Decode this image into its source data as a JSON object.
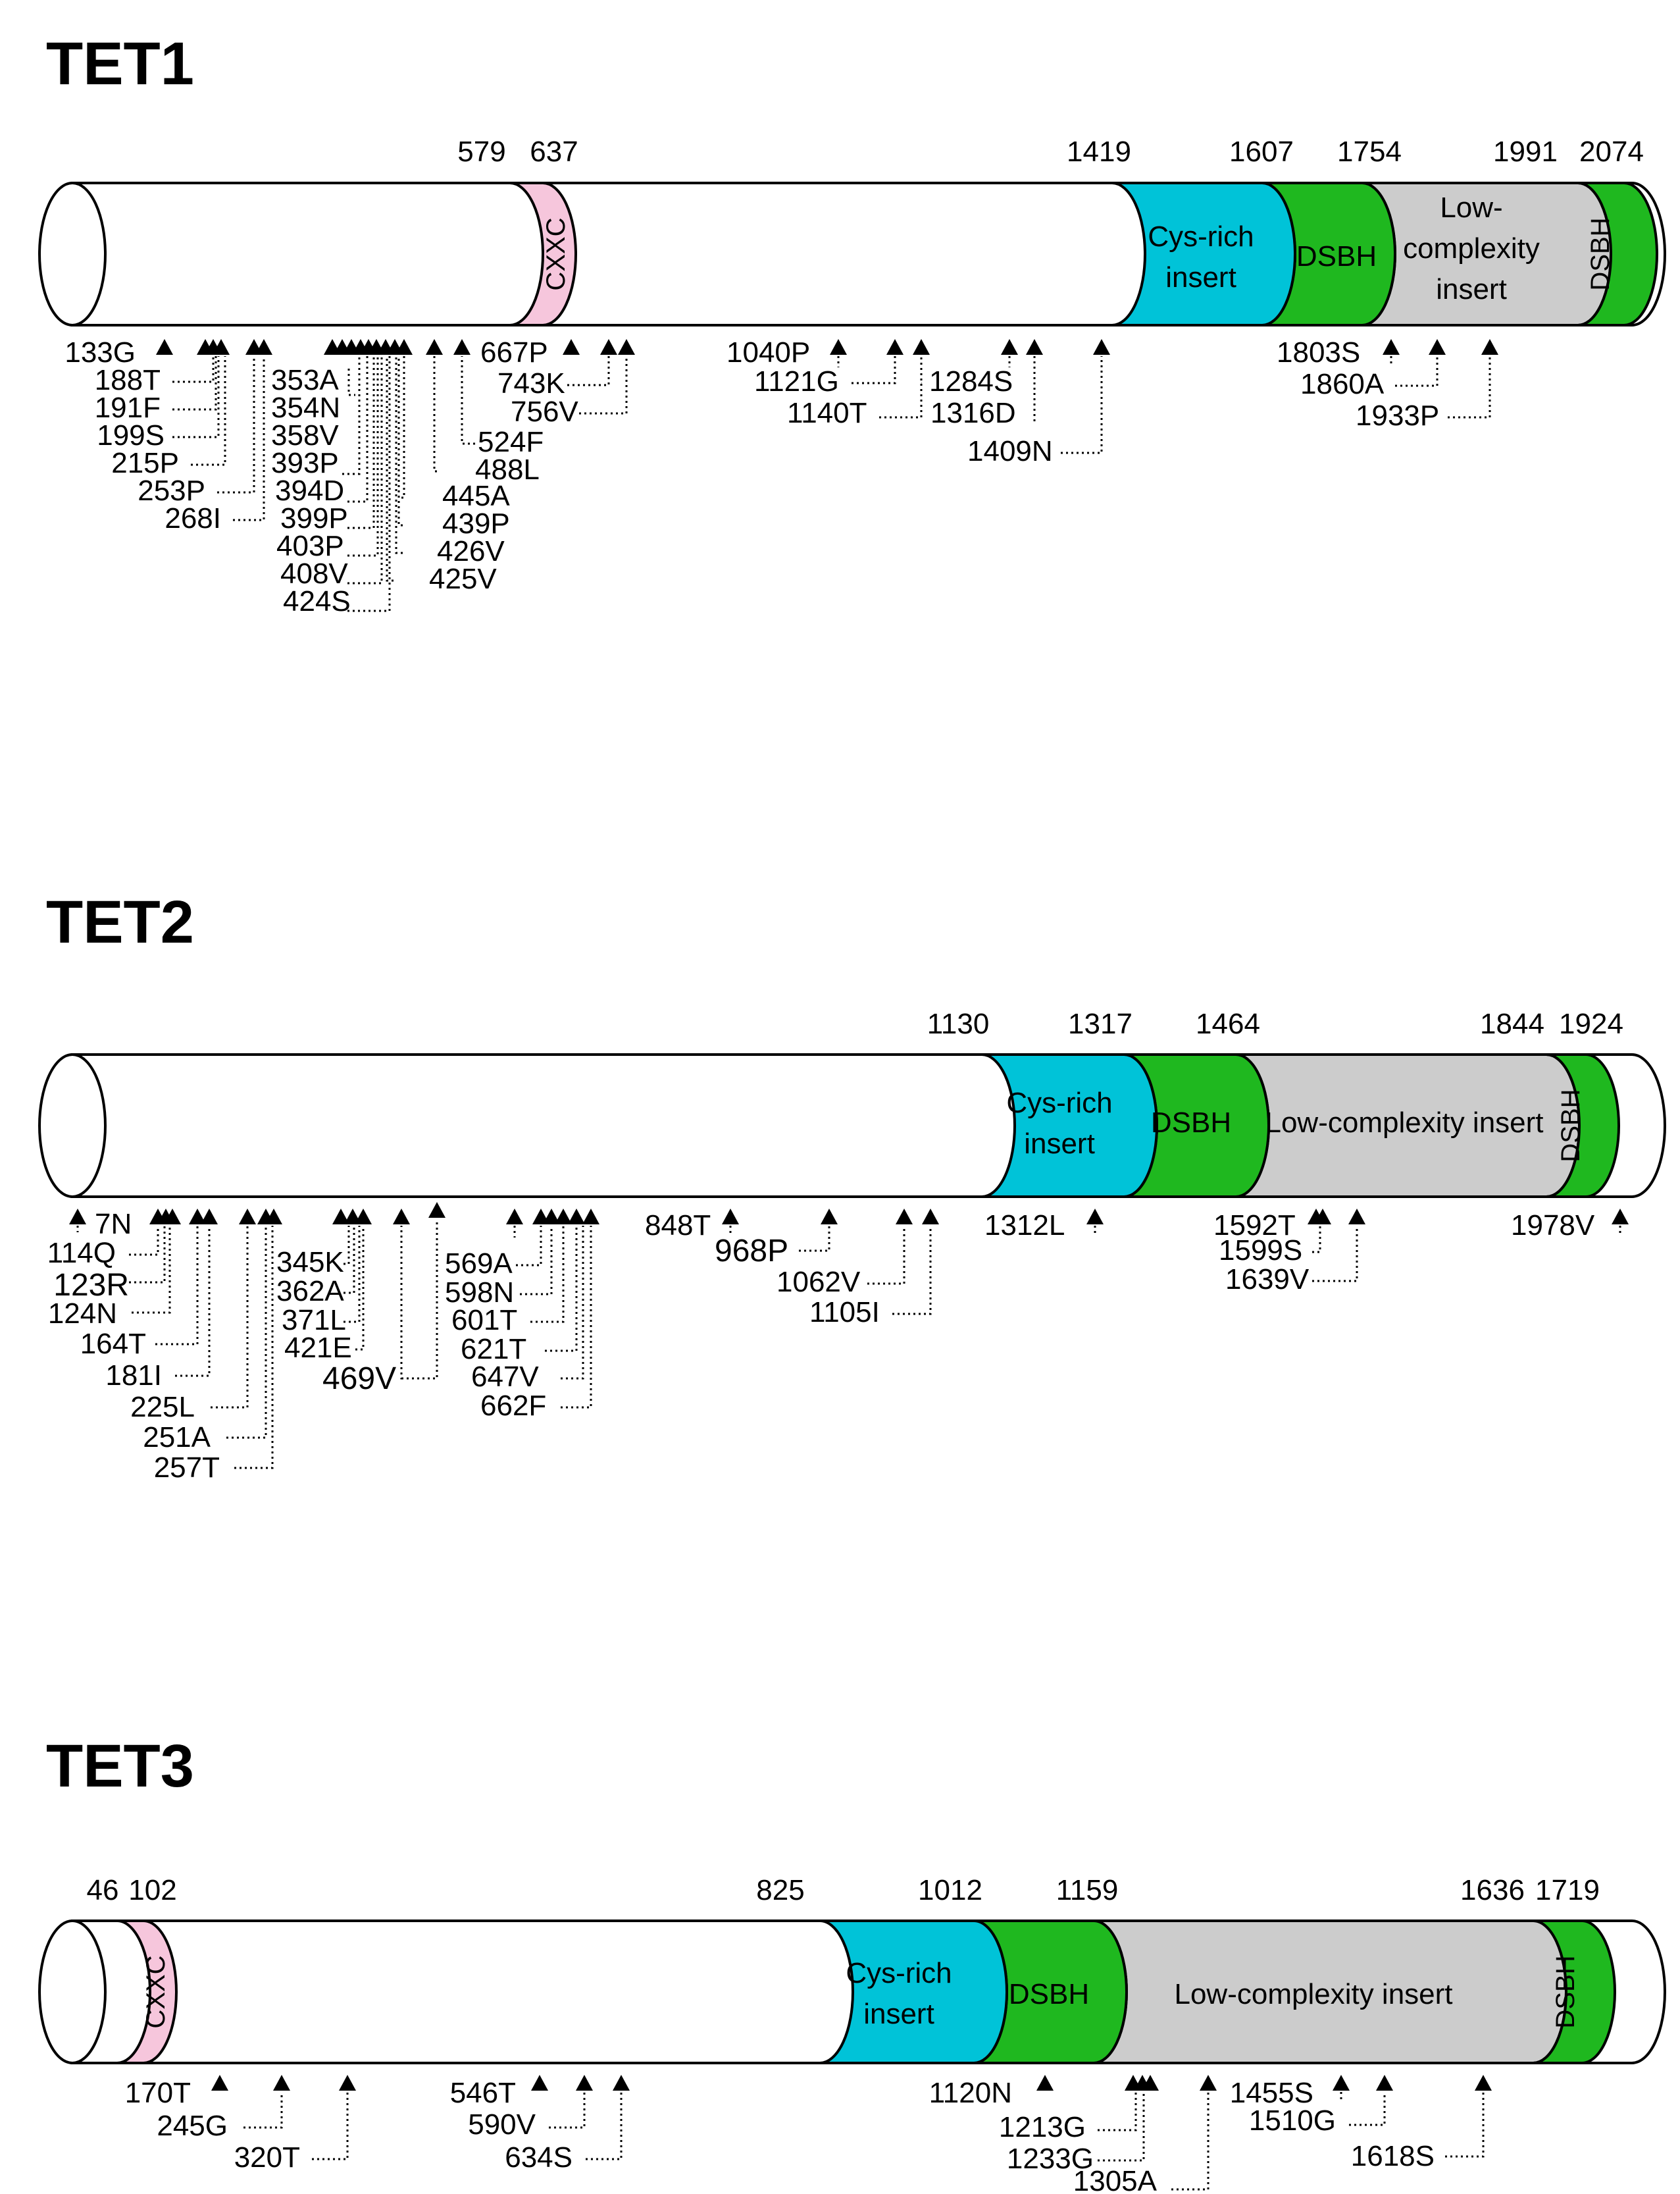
{
  "colors": {
    "cxxc": "#f6c6dc",
    "cys_rich": "#00c3d8",
    "dsbh": "#1fb81f",
    "low_complexity": "#cccccc",
    "body": "#ffffff",
    "highlight_label": "#2a2aa6",
    "label": "#000000"
  },
  "proteins": [
    {
      "title": "TET1",
      "boundaries": [
        "579",
        "637",
        "1419",
        "1607",
        "1754",
        "1991",
        "2074"
      ],
      "domains": [
        {
          "type": "cxxc",
          "label": "CXXC",
          "vertical": true
        },
        {
          "type": "cys_rich",
          "label": [
            "Cys-rich",
            "insert"
          ]
        },
        {
          "type": "dsbh",
          "label": [
            "DSBH"
          ]
        },
        {
          "type": "low_complexity",
          "label": [
            "Low-",
            "complexity",
            "insert"
          ]
        },
        {
          "type": "dsbh",
          "label": "DSBH",
          "vertical": true
        }
      ],
      "mutations": [
        "133G",
        "188T",
        "191F",
        "199S",
        "215P",
        "253P",
        "268I",
        "353A",
        "354N",
        "358V",
        "393P",
        "394D",
        "399P",
        "403P",
        "408V",
        "424S",
        "445A",
        "439P",
        "426V",
        "425V",
        "488L",
        "524F",
        "667P",
        "743K",
        "756V",
        "1040P",
        "1121G",
        "1140T",
        "1284S",
        "1316D",
        "1409N",
        "1803S",
        "1860A",
        "1933P"
      ],
      "highlighted": [
        "524F"
      ]
    },
    {
      "title": "TET2",
      "boundaries": [
        "1130",
        "1317",
        "1464",
        "1844",
        "1924"
      ],
      "domains": [
        {
          "type": "cys_rich",
          "label": [
            "Cys-rich",
            "insert"
          ]
        },
        {
          "type": "dsbh",
          "label": [
            "DSBH"
          ]
        },
        {
          "type": "low_complexity",
          "label": [
            "Low-complexity insert"
          ]
        },
        {
          "type": "dsbh",
          "label": "DSBH",
          "vertical": true
        }
      ],
      "mutations": [
        "7N",
        "114Q",
        "123R",
        "124N",
        "164T",
        "181I",
        "225L",
        "251A",
        "257T",
        "345K",
        "362A",
        "371L",
        "421E",
        "469V",
        "569A",
        "598N",
        "601T",
        "621T",
        "647V",
        "662F",
        "848T",
        "968P",
        "1062V",
        "1105I",
        "1312L",
        "1592T",
        "1599S",
        "1639V",
        "1978V"
      ],
      "highlighted": [
        "123R",
        "469V",
        "968P"
      ]
    },
    {
      "title": "TET3",
      "boundaries": [
        "46",
        "102",
        "825",
        "1012",
        "1159",
        "1636",
        "1719"
      ],
      "domains": [
        {
          "type": "cxxc",
          "label": "CXXC",
          "vertical": true
        },
        {
          "type": "cys_rich",
          "label": [
            "Cys-rich",
            "insert"
          ]
        },
        {
          "type": "dsbh",
          "label": [
            "DSBH"
          ]
        },
        {
          "type": "low_complexity",
          "label": [
            "Low-complexity insert"
          ]
        },
        {
          "type": "dsbh",
          "label": "DSBH",
          "vertical": true
        }
      ],
      "mutations": [
        "170T",
        "245G",
        "320T",
        "546T",
        "590V",
        "634S",
        "1120N",
        "1213G",
        "1233G",
        "1305A",
        "1455S",
        "1510G",
        "1618S"
      ],
      "highlighted": []
    }
  ]
}
